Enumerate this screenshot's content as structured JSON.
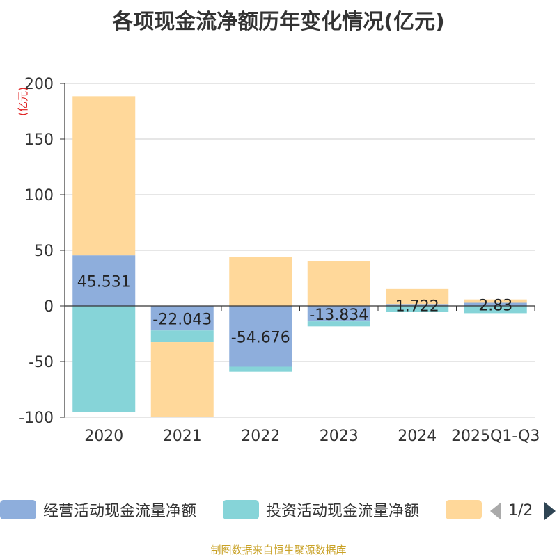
{
  "title": "各项现金流净额历年变化情况(亿元)",
  "source": "制图数据来自恒生聚源数据库",
  "legend": {
    "items": [
      {
        "label": "经营活动现金流量净额",
        "color": "#8eaedc"
      },
      {
        "label": "投资活动现金流量净额",
        "color": "#86d4d8"
      },
      {
        "label": "",
        "color": "#ffd89a"
      }
    ],
    "page": "1/2"
  },
  "chart_data": {
    "type": "bar",
    "stacked": true,
    "ylabel": "(亿元)",
    "ylim": [
      -100,
      200
    ],
    "yticks": [
      -100,
      -50,
      0,
      50,
      100,
      150,
      200
    ],
    "grid": true,
    "legend_position": "bottom",
    "categories": [
      "2020",
      "2021",
      "2022",
      "2023",
      "2024",
      "2025Q1-Q3"
    ],
    "series": [
      {
        "name": "经营活动现金流量净额",
        "color": "#8eaedc",
        "values": [
          45.531,
          -22.043,
          -54.676,
          -13.834,
          1.722,
          2.83
        ],
        "labels": [
          "45.531",
          "-22.043",
          "-54.676",
          "-13.834",
          "1.722",
          "2.83"
        ]
      },
      {
        "name": "投资活动现金流量净额",
        "color": "#86d4d8",
        "values": [
          -95.5,
          -10.5,
          -4.5,
          -4.5,
          -5.5,
          -6.5
        ]
      },
      {
        "name": "",
        "color": "#ffd89a",
        "values": [
          143,
          -67,
          44,
          40,
          14,
          3
        ]
      }
    ]
  }
}
